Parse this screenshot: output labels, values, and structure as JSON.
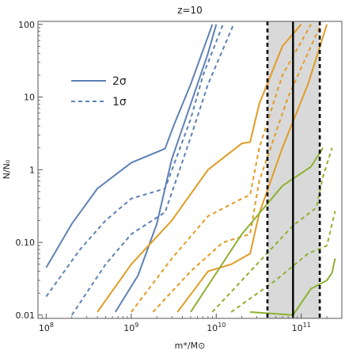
{
  "chart_data": {
    "type": "line",
    "title": "z=10",
    "xlabel": "m*/M⊙",
    "ylabel": "N/N₀",
    "x_scale": "log",
    "y_scale": "log",
    "xlim": [
      80000000,
      300000000000
    ],
    "ylim": [
      0.009,
      110
    ],
    "grid": false,
    "x_ticks": [
      {
        "value": 100000000,
        "label": "10",
        "exp": "8"
      },
      {
        "value": 1000000000,
        "label": "10",
        "exp": "9"
      },
      {
        "value": 10000000000,
        "label": "10",
        "exp": "10"
      },
      {
        "value": 100000000000,
        "label": "10",
        "exp": "11"
      }
    ],
    "y_ticks": [
      {
        "value": 0.01,
        "label": "0.01"
      },
      {
        "value": 0.1,
        "label": "0.10"
      },
      {
        "value": 1,
        "label": "1"
      },
      {
        "value": 10,
        "label": "10"
      },
      {
        "value": 100,
        "label": "100"
      }
    ],
    "colors": {
      "blue": "#5e81b5",
      "orange": "#e19c24",
      "green": "#8fb032",
      "band": "#d9d9d9",
      "black": "#000000"
    },
    "band": {
      "x_min": 40000000000,
      "x_max": 165000000000
    },
    "vlines": [
      {
        "x": 40000000000,
        "style": "dashed"
      },
      {
        "x": 80000000000,
        "style": "solid"
      },
      {
        "x": 165000000000,
        "style": "dashed"
      }
    ],
    "legend": {
      "position": "upper-left",
      "entries": [
        {
          "label": "2σ",
          "style": "solid",
          "color": "#5e81b5"
        },
        {
          "label": "1σ",
          "style": "dashed",
          "color": "#5e81b5"
        }
      ]
    },
    "series": [
      {
        "color": "#5e81b5",
        "style": "solid",
        "points": [
          [
            100000000,
            0.045
          ],
          [
            200000000,
            0.18
          ],
          [
            400000000,
            0.55
          ],
          [
            1000000000,
            1.25
          ],
          [
            2500000000,
            1.95
          ],
          [
            3200000000,
            4.2
          ],
          [
            5000000000,
            15
          ],
          [
            9000000000,
            100
          ]
        ]
      },
      {
        "color": "#5e81b5",
        "style": "dashed",
        "points": [
          [
            100000000,
            0.018
          ],
          [
            250000000,
            0.08
          ],
          [
            500000000,
            0.2
          ],
          [
            1000000000,
            0.4
          ],
          [
            2500000000,
            0.55
          ],
          [
            3200000000,
            1.2
          ],
          [
            5000000000,
            5
          ],
          [
            7000000000,
            20
          ],
          [
            12000000000,
            100
          ]
        ]
      },
      {
        "color": "#5e81b5",
        "style": "dashed",
        "points": [
          [
            200000000,
            0.01
          ],
          [
            500000000,
            0.05
          ],
          [
            1000000000,
            0.13
          ],
          [
            2500000000,
            0.26
          ],
          [
            3200000000,
            0.6
          ],
          [
            5000000000,
            2.8
          ],
          [
            8000000000,
            15
          ],
          [
            16000000000,
            100
          ]
        ]
      },
      {
        "color": "#5e81b5",
        "style": "solid",
        "points": [
          [
            650000000,
            0.011
          ],
          [
            1200000000,
            0.035
          ],
          [
            2000000000,
            0.18
          ],
          [
            3000000000,
            1.4
          ],
          [
            5000000000,
            8
          ],
          [
            8000000000,
            40
          ],
          [
            10000000000,
            100
          ]
        ]
      },
      {
        "color": "#e19c24",
        "style": "solid",
        "points": [
          [
            400000000,
            0.011
          ],
          [
            1000000000,
            0.05
          ],
          [
            3000000000,
            0.2
          ],
          [
            8000000000,
            1.0
          ],
          [
            20000000000,
            2.3
          ],
          [
            25000000000,
            2.4
          ],
          [
            32000000000,
            8
          ],
          [
            60000000000,
            50
          ],
          [
            100000000000,
            100
          ]
        ]
      },
      {
        "color": "#e19c24",
        "style": "dashed",
        "points": [
          [
            1000000000,
            0.011
          ],
          [
            3000000000,
            0.06
          ],
          [
            8000000000,
            0.23
          ],
          [
            20000000000,
            0.4
          ],
          [
            25000000000,
            0.45
          ],
          [
            32000000000,
            2
          ],
          [
            60000000000,
            20
          ],
          [
            130000000000,
            100
          ]
        ]
      },
      {
        "color": "#e19c24",
        "style": "dashed",
        "points": [
          [
            1800000000,
            0.011
          ],
          [
            5000000000,
            0.04
          ],
          [
            12000000000,
            0.1
          ],
          [
            25000000000,
            0.13
          ],
          [
            32000000000,
            0.7
          ],
          [
            70000000000,
            10
          ],
          [
            170000000000,
            100
          ]
        ]
      },
      {
        "color": "#e19c24",
        "style": "solid",
        "points": [
          [
            3500000000,
            0.011
          ],
          [
            8000000000,
            0.04
          ],
          [
            15000000000,
            0.05
          ],
          [
            25000000000,
            0.07
          ],
          [
            32000000000,
            0.25
          ],
          [
            60000000000,
            2
          ],
          [
            120000000000,
            15
          ],
          [
            200000000000,
            100
          ]
        ]
      },
      {
        "color": "#8fb032",
        "style": "solid",
        "points": [
          [
            5000000000,
            0.011
          ],
          [
            20000000000,
            0.13
          ],
          [
            60000000000,
            0.6
          ],
          [
            130000000000,
            1.1
          ],
          [
            180000000000,
            2.0
          ]
        ]
      },
      {
        "color": "#8fb032",
        "style": "dashed",
        "points": [
          [
            9000000000,
            0.011
          ],
          [
            30000000000,
            0.05
          ],
          [
            80000000000,
            0.17
          ],
          [
            150000000000,
            0.3
          ],
          [
            180000000000,
            0.8
          ],
          [
            230000000000,
            2.0
          ]
        ]
      },
      {
        "color": "#8fb032",
        "style": "dashed",
        "points": [
          [
            15000000000,
            0.011
          ],
          [
            50000000000,
            0.03
          ],
          [
            120000000000,
            0.07
          ],
          [
            200000000000,
            0.09
          ],
          [
            250000000000,
            0.27
          ]
        ]
      },
      {
        "color": "#8fb032",
        "style": "solid",
        "points": [
          [
            25000000000,
            0.011
          ],
          [
            80000000000,
            0.01
          ],
          [
            130000000000,
            0.023
          ],
          [
            200000000000,
            0.03
          ],
          [
            230000000000,
            0.038
          ],
          [
            250000000000,
            0.06
          ]
        ]
      }
    ]
  }
}
